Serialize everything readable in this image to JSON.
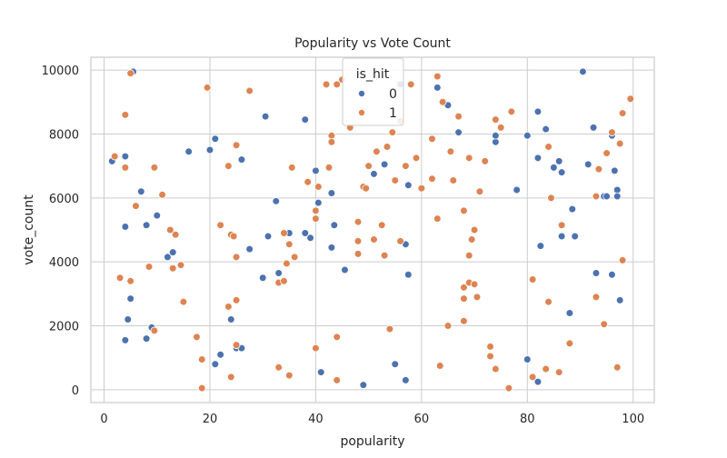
{
  "chart_data": {
    "type": "scatter",
    "title": "Popularity vs Vote Count",
    "xlabel": "popularity",
    "ylabel": "vote_count",
    "xlim": [
      -2.5,
      104
    ],
    "ylim": [
      -400,
      10400
    ],
    "xticks": [
      0,
      20,
      40,
      60,
      80,
      100
    ],
    "yticks": [
      0,
      2000,
      4000,
      6000,
      8000,
      10000
    ],
    "grid": true,
    "legend": {
      "title": "is_hit",
      "placement": "top-center"
    },
    "series": [
      {
        "name": "0",
        "color": "#4c72b0",
        "points": [
          [
            1.5,
            7150
          ],
          [
            5.5,
            9950
          ],
          [
            4,
            7300
          ],
          [
            7,
            6200
          ],
          [
            4,
            5100
          ],
          [
            8,
            5150
          ],
          [
            10,
            5450
          ],
          [
            5,
            2850
          ],
          [
            4.5,
            2200
          ],
          [
            4,
            1550
          ],
          [
            8,
            1600
          ],
          [
            9,
            1950
          ],
          [
            12,
            4150
          ],
          [
            13,
            4300
          ],
          [
            16,
            7450
          ],
          [
            20,
            7500
          ],
          [
            21,
            7850
          ],
          [
            21,
            800
          ],
          [
            22,
            1100
          ],
          [
            24,
            2200
          ],
          [
            25,
            1300
          ],
          [
            26,
            1300
          ],
          [
            26,
            7200
          ],
          [
            27.5,
            4400
          ],
          [
            30,
            3500
          ],
          [
            30.5,
            8550
          ],
          [
            31,
            4800
          ],
          [
            32.5,
            5900
          ],
          [
            33,
            3650
          ],
          [
            35,
            4900
          ],
          [
            38,
            8450
          ],
          [
            38,
            4900
          ],
          [
            39,
            4750
          ],
          [
            40,
            6850
          ],
          [
            40.5,
            5850
          ],
          [
            41,
            550
          ],
          [
            43,
            6150
          ],
          [
            43,
            4450
          ],
          [
            43.5,
            5150
          ],
          [
            45.5,
            3750
          ],
          [
            49,
            150
          ],
          [
            51,
            6750
          ],
          [
            53,
            7050
          ],
          [
            55,
            800
          ],
          [
            56,
            9550
          ],
          [
            57,
            4550
          ],
          [
            57,
            300
          ],
          [
            57.5,
            6400
          ],
          [
            57.5,
            3600
          ],
          [
            58,
            9550
          ],
          [
            63,
            9450
          ],
          [
            65,
            8900
          ],
          [
            67,
            8050
          ],
          [
            74,
            7750
          ],
          [
            74,
            7950
          ],
          [
            78,
            6250
          ],
          [
            80,
            7950
          ],
          [
            80,
            950
          ],
          [
            82,
            7250
          ],
          [
            82,
            8700
          ],
          [
            82,
            250
          ],
          [
            82.5,
            4500
          ],
          [
            83.5,
            8150
          ],
          [
            85,
            6950
          ],
          [
            86,
            7150
          ],
          [
            86.5,
            6800
          ],
          [
            86.5,
            4800
          ],
          [
            88,
            2400
          ],
          [
            88.5,
            5650
          ],
          [
            89,
            4800
          ],
          [
            90.5,
            9950
          ],
          [
            91.5,
            7050
          ],
          [
            92.5,
            8200
          ],
          [
            93,
            3650
          ],
          [
            94.5,
            6050
          ],
          [
            95,
            6050
          ],
          [
            96,
            7950
          ],
          [
            96,
            3600
          ],
          [
            96.5,
            6850
          ],
          [
            97,
            6250
          ],
          [
            97,
            6050
          ],
          [
            97.5,
            2800
          ]
        ]
      },
      {
        "name": "1",
        "color": "#dd8452",
        "points": [
          [
            2,
            7300
          ],
          [
            3,
            3500
          ],
          [
            4,
            6950
          ],
          [
            4,
            8600
          ],
          [
            5,
            9900
          ],
          [
            5,
            3400
          ],
          [
            6,
            5750
          ],
          [
            8.5,
            3850
          ],
          [
            9.5,
            6950
          ],
          [
            9.5,
            1850
          ],
          [
            11,
            6100
          ],
          [
            12.5,
            5000
          ],
          [
            13,
            3800
          ],
          [
            13.5,
            4850
          ],
          [
            14.5,
            3900
          ],
          [
            15,
            2750
          ],
          [
            17.5,
            1650
          ],
          [
            18.5,
            950
          ],
          [
            18.5,
            50
          ],
          [
            19.5,
            9450
          ],
          [
            22,
            5150
          ],
          [
            23.5,
            7000
          ],
          [
            23.5,
            2600
          ],
          [
            24,
            4850
          ],
          [
            24,
            400
          ],
          [
            24.5,
            4800
          ],
          [
            25,
            7650
          ],
          [
            25,
            4150
          ],
          [
            25,
            2800
          ],
          [
            25,
            1400
          ],
          [
            27.5,
            9350
          ],
          [
            33,
            3350
          ],
          [
            33,
            700
          ],
          [
            34,
            4900
          ],
          [
            34,
            3400
          ],
          [
            34.5,
            3950
          ],
          [
            35,
            4550
          ],
          [
            35,
            450
          ],
          [
            35.5,
            6950
          ],
          [
            36,
            4150
          ],
          [
            38.5,
            6500
          ],
          [
            40,
            5350
          ],
          [
            40,
            5600
          ],
          [
            40,
            1300
          ],
          [
            40.5,
            6350
          ],
          [
            42,
            9550
          ],
          [
            42.5,
            6950
          ],
          [
            43,
            7950
          ],
          [
            43,
            7750
          ],
          [
            44,
            9550
          ],
          [
            44,
            1650
          ],
          [
            44,
            300
          ],
          [
            45,
            9700
          ],
          [
            46.5,
            8200
          ],
          [
            48,
            4650
          ],
          [
            48,
            5250
          ],
          [
            48,
            4250
          ],
          [
            49,
            6350
          ],
          [
            49.5,
            6300
          ],
          [
            50,
            7000
          ],
          [
            51,
            4700
          ],
          [
            51.5,
            7450
          ],
          [
            52.5,
            5150
          ],
          [
            53,
            4200
          ],
          [
            53.5,
            7600
          ],
          [
            54,
            1900
          ],
          [
            54.5,
            8050
          ],
          [
            55,
            6550
          ],
          [
            56,
            4650
          ],
          [
            56,
            8400
          ],
          [
            57,
            7000
          ],
          [
            58,
            9550
          ],
          [
            59,
            7250
          ],
          [
            60,
            6300
          ],
          [
            62,
            7850
          ],
          [
            62,
            6600
          ],
          [
            63,
            9800
          ],
          [
            63,
            5350
          ],
          [
            63.5,
            750
          ],
          [
            64,
            9000
          ],
          [
            65,
            2000
          ],
          [
            65.5,
            7450
          ],
          [
            66,
            6550
          ],
          [
            67,
            8550
          ],
          [
            68,
            5600
          ],
          [
            68,
            3200
          ],
          [
            68,
            2850
          ],
          [
            68,
            2150
          ],
          [
            69,
            7250
          ],
          [
            69,
            4200
          ],
          [
            69,
            3350
          ],
          [
            69.5,
            4700
          ],
          [
            70,
            5000
          ],
          [
            70,
            3300
          ],
          [
            70.5,
            2900
          ],
          [
            71,
            6200
          ],
          [
            72,
            7150
          ],
          [
            73,
            1350
          ],
          [
            73,
            1050
          ],
          [
            74,
            8450
          ],
          [
            74,
            650
          ],
          [
            75,
            8200
          ],
          [
            77,
            8700
          ],
          [
            76.5,
            50
          ],
          [
            81,
            3450
          ],
          [
            81,
            400
          ],
          [
            83.5,
            650
          ],
          [
            84,
            2750
          ],
          [
            84,
            7600
          ],
          [
            84.5,
            6000
          ],
          [
            86,
            550
          ],
          [
            86.5,
            5150
          ],
          [
            88,
            1450
          ],
          [
            93,
            6050
          ],
          [
            93,
            2900
          ],
          [
            93.5,
            6900
          ],
          [
            94.5,
            2050
          ],
          [
            95,
            7400
          ],
          [
            96,
            8050
          ],
          [
            97,
            700
          ],
          [
            97.5,
            7700
          ],
          [
            98,
            8650
          ],
          [
            98,
            4050
          ],
          [
            99.5,
            9100
          ]
        ]
      }
    ]
  }
}
